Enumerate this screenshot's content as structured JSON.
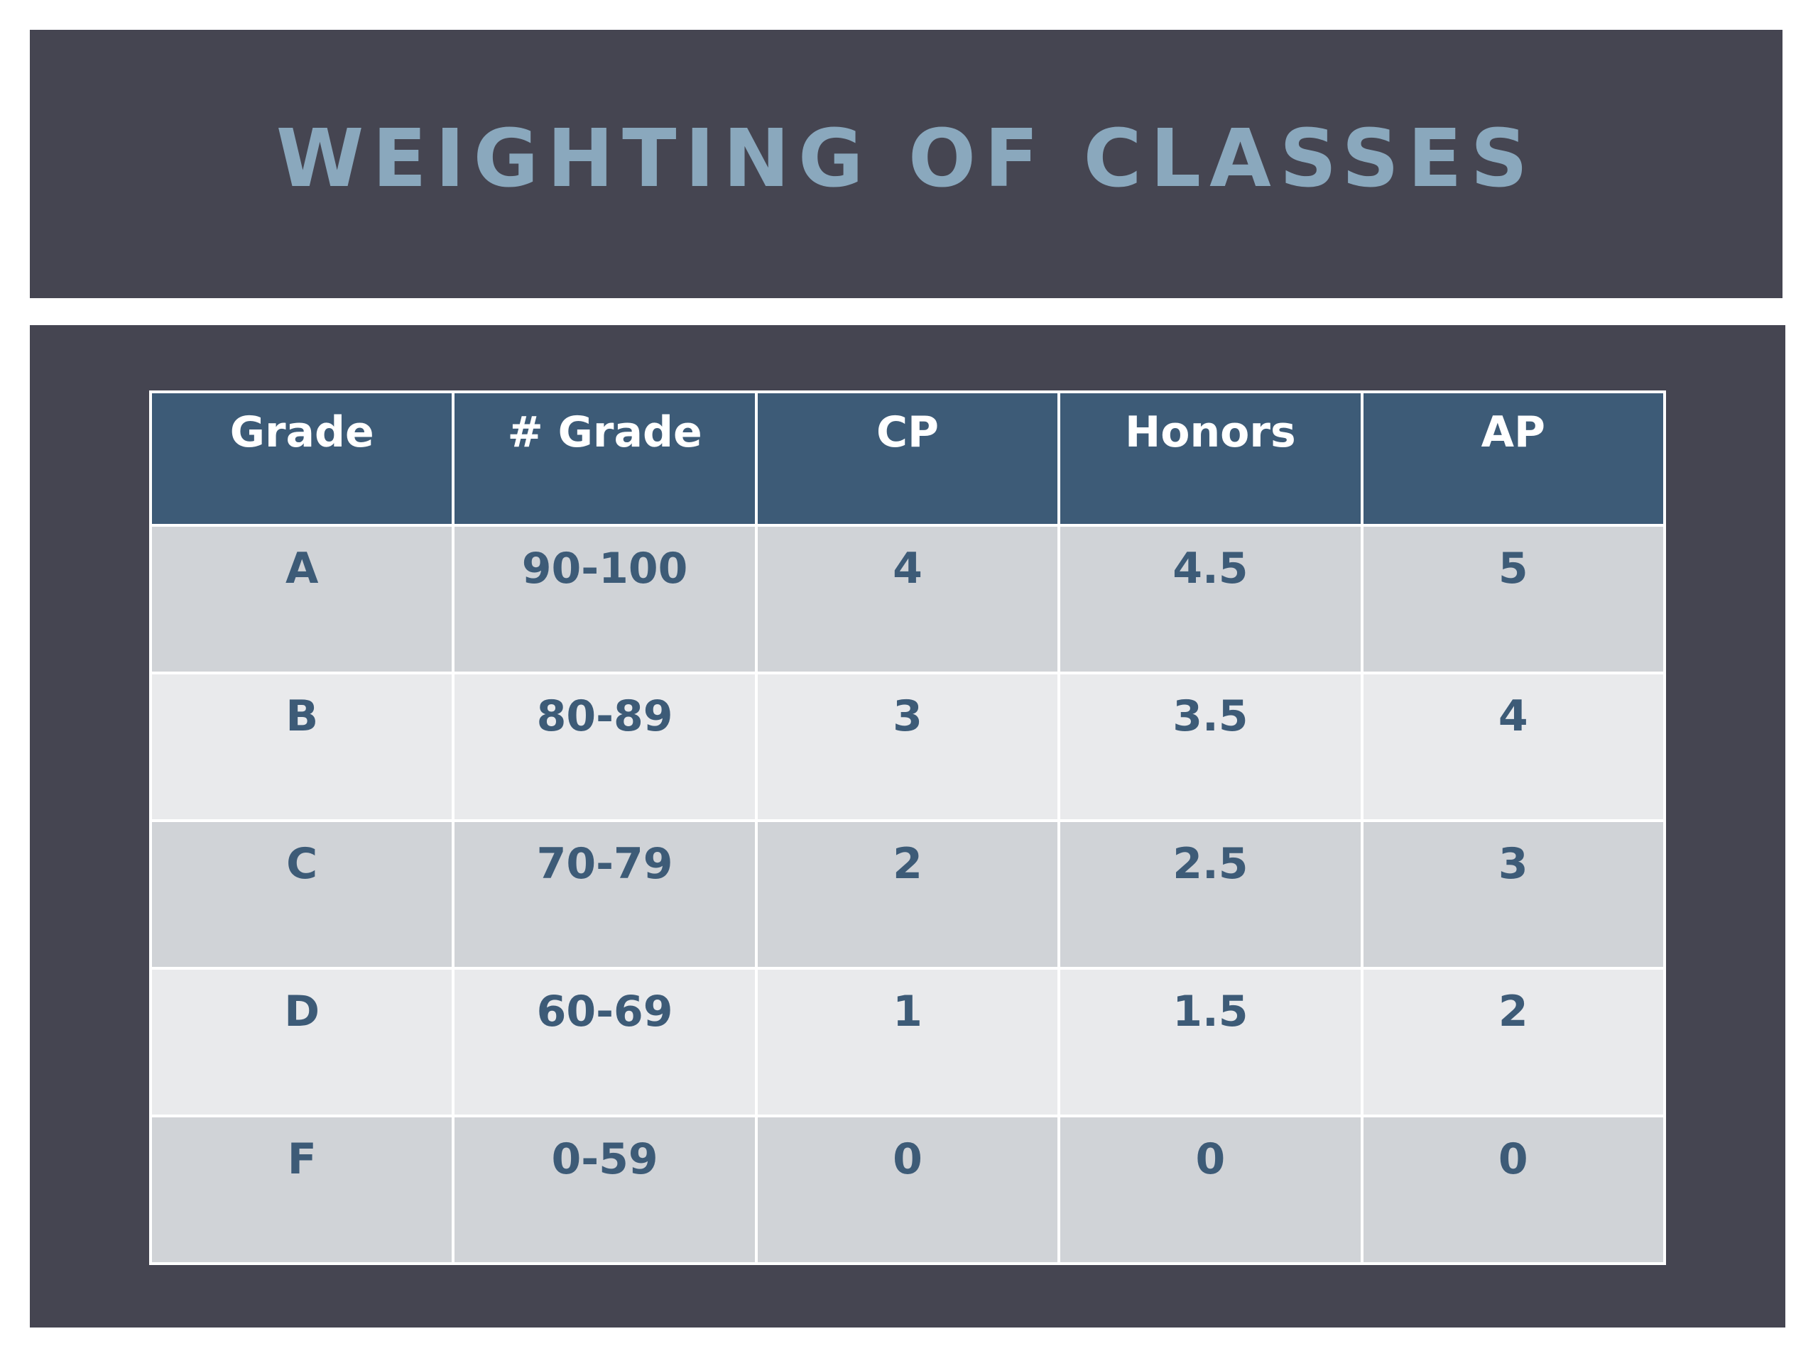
{
  "slide": {
    "title": "WEIGHTING OF CLASSES"
  },
  "table": {
    "headers": [
      "Grade",
      "# Grade",
      "CP",
      "Honors",
      "AP"
    ],
    "rows": [
      [
        "A",
        "90-100",
        "4",
        "4.5",
        "5"
      ],
      [
        "B",
        "80-89",
        "3",
        "3.5",
        "4"
      ],
      [
        "C",
        "70-79",
        "2",
        "2.5",
        "3"
      ],
      [
        "D",
        "60-69",
        "1",
        "1.5",
        "2"
      ],
      [
        "F",
        "0-59",
        "0",
        "0",
        "0"
      ]
    ]
  },
  "colors": {
    "dark_panel": "#454551",
    "title_text": "#8aa8bd",
    "header_fill": "#3d5b77",
    "row_fill_odd": "#d0d3d7",
    "row_fill_even": "#e9eaec",
    "cell_text": "#3d5b77"
  }
}
